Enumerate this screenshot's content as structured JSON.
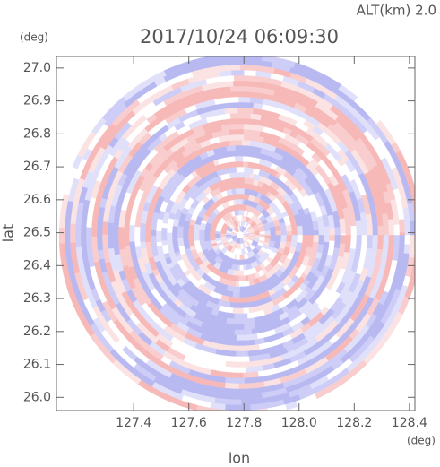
{
  "chart_data": {
    "type": "ppi",
    "title": "2017/10/24 06:09:30",
    "subtitle": "ALT(km) 2.0",
    "x_label": "lon",
    "y_label": "lat",
    "x_unit": "(deg)",
    "y_unit": "(deg)",
    "xlim": [
      127.12,
      128.42
    ],
    "ylim": [
      25.96,
      27.035
    ],
    "xticks": [
      {
        "value": 127.4,
        "label": "127.4"
      },
      {
        "value": 127.6,
        "label": "127.6"
      },
      {
        "value": 127.8,
        "label": "127.8"
      },
      {
        "value": 128.0,
        "label": "128.0"
      },
      {
        "value": 128.2,
        "label": "128.2"
      },
      {
        "value": 128.4,
        "label": "128.4"
      }
    ],
    "yticks": [
      {
        "value": 26.0,
        "label": "26.0"
      },
      {
        "value": 26.1,
        "label": "26.1"
      },
      {
        "value": 26.2,
        "label": "26.2"
      },
      {
        "value": 26.3,
        "label": "26.3"
      },
      {
        "value": 26.4,
        "label": "26.4"
      },
      {
        "value": 26.5,
        "label": "26.5"
      },
      {
        "value": 26.6,
        "label": "26.6"
      },
      {
        "value": 26.7,
        "label": "26.7"
      },
      {
        "value": 26.8,
        "label": "26.8"
      },
      {
        "value": 26.9,
        "label": "26.9"
      },
      {
        "value": 27.0,
        "label": "27.0"
      }
    ]
  }
}
